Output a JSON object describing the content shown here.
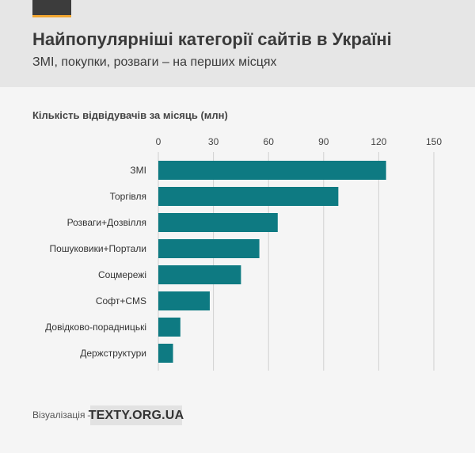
{
  "header": {
    "title": "Найпопулярніші категорії сайтів в Україні",
    "subtitle": "ЗМІ, покупки, розваги – на перших місцях"
  },
  "chart_data": {
    "type": "bar",
    "orientation": "horizontal",
    "title": "Найпопулярніші категорії сайтів в Україні",
    "subtitle": "ЗМІ, покупки, розваги – на перших місцях",
    "xlabel": "Кількість відвідувачів за місяць (млн)",
    "ylabel": "",
    "categories": [
      "ЗМІ",
      "Торгівля",
      "Розваги+Дозвілля",
      "Пошуковики+Портали",
      "Соцмережі",
      "Софт+CMS",
      "Довідково-порадницькі",
      "Держструктури"
    ],
    "values": [
      124,
      98,
      65,
      55,
      45,
      28,
      12,
      8
    ],
    "xlim": [
      0,
      150
    ],
    "ticks": [
      0,
      30,
      60,
      90,
      120,
      150
    ],
    "tick_labels": [
      "0",
      "30",
      "60",
      "90",
      "120",
      "150"
    ],
    "grid": true,
    "bar_color": "#0e7a82",
    "grid_color": "#d0d0d0"
  },
  "footer": {
    "label": "Візуалізація –",
    "brand": "TEXTY.ORG.UA"
  }
}
